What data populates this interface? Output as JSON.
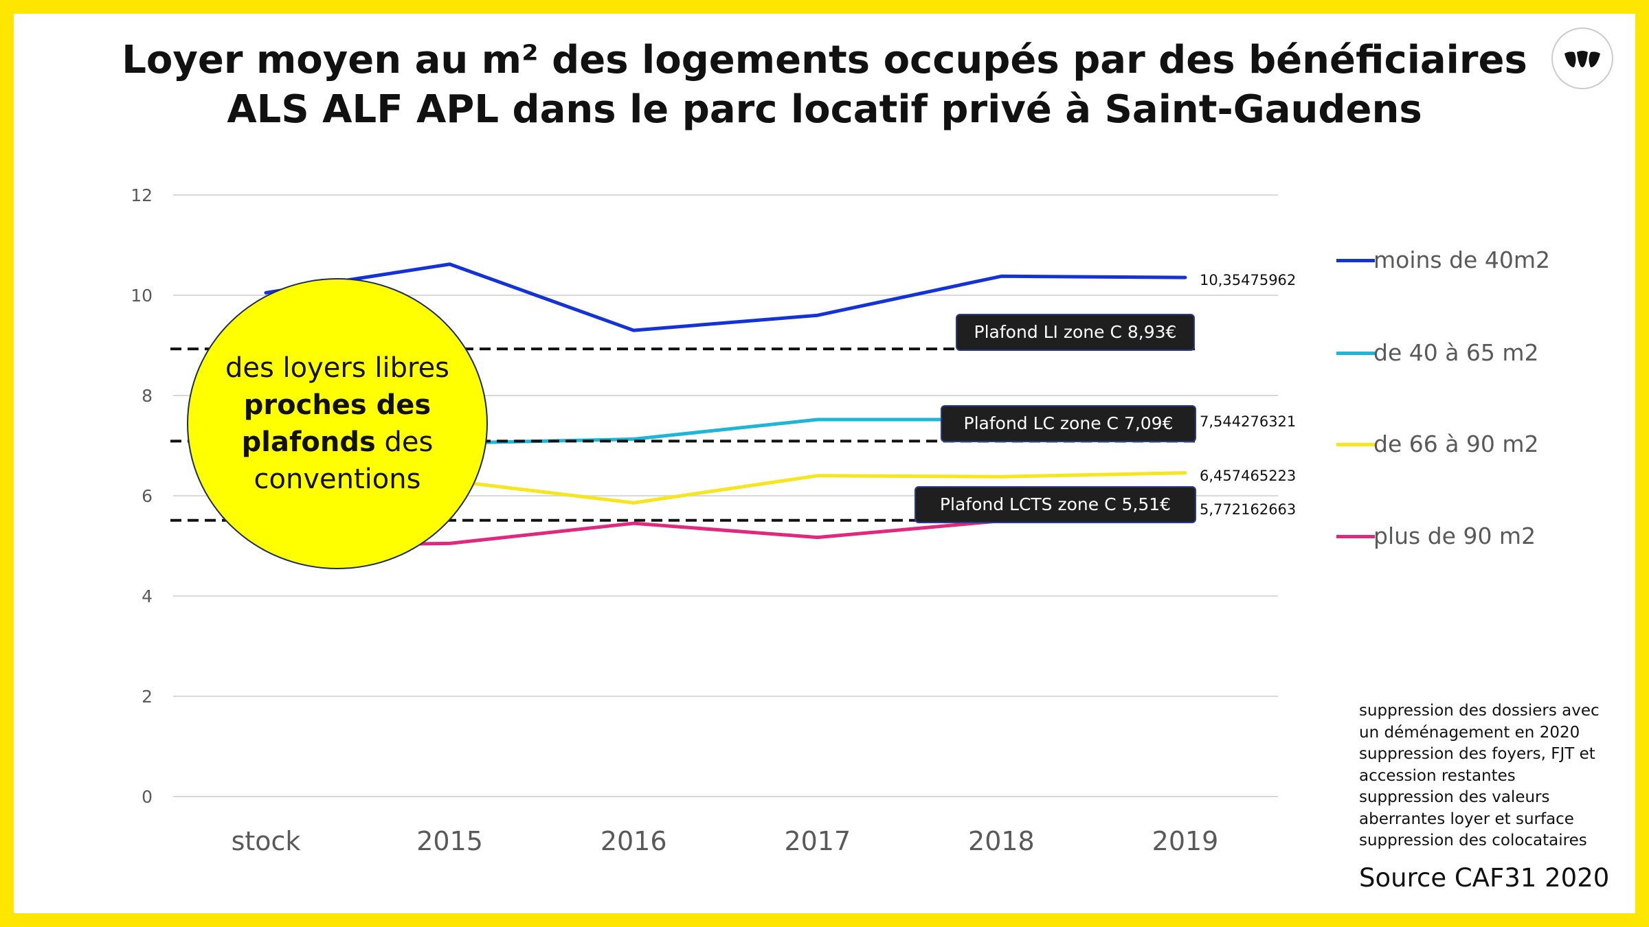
{
  "title_line1": "Loyer moyen au m² des logements occupés par des bénéficiaires",
  "title_line2": "ALS ALF APL dans le parc locatif privé à Saint-Gaudens",
  "bubble": {
    "part1": "des loyers libres ",
    "bold": "proches des plafonds",
    "part2": " des conventions"
  },
  "notes": [
    "suppression des dossiers avec",
    "un déménagement en 2020",
    "suppression des foyers, FJT et",
    "accession restantes",
    "suppression des valeurs",
    "aberrantes loyer et surface",
    "suppression des colocataires"
  ],
  "source": "Source CAF31 2020",
  "colors": {
    "frame": "#FFE600",
    "bubble": "#FFFF00",
    "plafond": "#1f1f1f"
  },
  "icons": {
    "logo": "publisher-logo-icon"
  },
  "chart_data": {
    "type": "line",
    "categories": [
      "stock",
      "2015",
      "2016",
      "2017",
      "2018",
      "2019"
    ],
    "ylim": [
      0,
      12
    ],
    "yticks": [
      0,
      2,
      4,
      6,
      8,
      10,
      12
    ],
    "grid": true,
    "legend_position": "right",
    "series": [
      {
        "name": "moins de 40m2",
        "color": "#1433D6",
        "values": [
          10.05,
          10.62,
          9.3,
          9.6,
          10.38,
          10.35475962
        ],
        "end_label": "10,35475962"
      },
      {
        "name": "de 40 à 65 m2",
        "color": "#1FB5D6",
        "values": [
          6.9,
          7.05,
          7.13,
          7.52,
          7.52,
          7.544276321
        ],
        "end_label": "7,544276321"
      },
      {
        "name": "de 66 à 90 m2",
        "color": "#F6E61E",
        "values": [
          6.3,
          6.3,
          5.86,
          6.4,
          6.38,
          6.457465223
        ],
        "end_label": "6,457465223"
      },
      {
        "name": "plus de 90 m2",
        "color": "#E0287E",
        "values": [
          5.0,
          5.05,
          5.45,
          5.17,
          5.5,
          5.772162663
        ],
        "end_label": "5,772162663"
      }
    ],
    "reference_lines": [
      {
        "label": "Plafond LI zone C 8,93€",
        "value": 8.93
      },
      {
        "label": "Plafond LC zone C 7,09€",
        "value": 7.09
      },
      {
        "label": "Plafond LCTS zone C 5,51€",
        "value": 5.51
      }
    ]
  }
}
